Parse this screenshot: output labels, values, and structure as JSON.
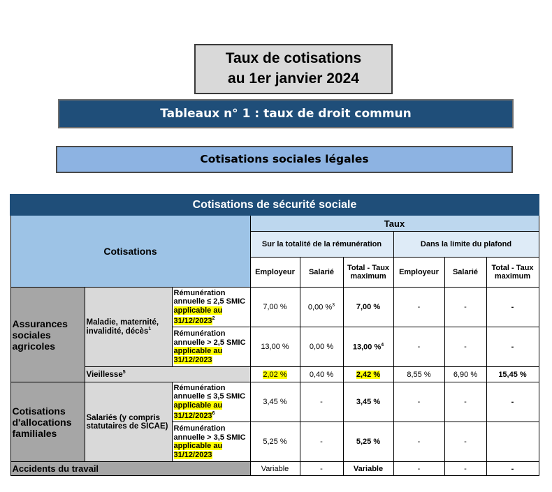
{
  "header": {
    "title_line1": "Taux de cotisations",
    "title_line2": "au 1er janvier 2024",
    "banner": "Tableaux n° 1 : taux de droit commun",
    "section": "Cotisations sociales légales"
  },
  "table": {
    "title": "Cotisations de sécurité sociale",
    "head": {
      "cotisations": "Cotisations",
      "taux": "Taux",
      "total_group": "Sur la totalité de la rémunération",
      "plafond_group": "Dans la limite du plafond",
      "columns": [
        "Employeur",
        "Salarié",
        "Total - Taux maximum",
        "Employeur",
        "Salarié",
        "Total - Taux maximum"
      ]
    },
    "rows": [
      {
        "group": "Assurances sociales agricoles",
        "subgroup": "Maladie, maternité, invalidité, décès",
        "subgroup_note": "1",
        "condition": "Rémunération annuelle ≤ 2,5 SMIC",
        "condition_highlight": "applicable au 31/12/2023",
        "condition_note": "2",
        "cells": [
          "7,00 %",
          {
            "text": "0,00 %",
            "note": "3"
          },
          "7,00 %",
          "-",
          "-",
          "-"
        ]
      },
      {
        "condition": "Rémunération annuelle > 2,5 SMIC",
        "condition_highlight": "applicable au 31/12/2023",
        "cells": [
          "13,00 %",
          "0,00 %",
          {
            "text": "13,00 %",
            "note": "4"
          },
          "-",
          "-",
          "-"
        ]
      },
      {
        "label": "Vieillesse",
        "label_note": "5",
        "cells": [
          "2,02 %",
          "0,40 %",
          "2,42 %",
          "8,55 %",
          "6,90 %",
          "15,45 %"
        ]
      },
      {
        "group": "Cotisations d'allocations familiales",
        "subgroup": "Salariés (y compris statutaires de SICAE)",
        "condition": "Rémunération annuelle ≤ 3,5 SMIC",
        "condition_highlight": "applicable au 31/12/2023",
        "condition_note": "6",
        "cells": [
          "3,45 %",
          "-",
          "3,45 %",
          "-",
          "-",
          "-"
        ]
      },
      {
        "condition": "Rémunération annuelle > 3,5 SMIC",
        "condition_highlight": "applicable au 31/12/2023",
        "cells": [
          "5,25 %",
          "-",
          "5,25 %",
          "-",
          "-",
          null
        ]
      },
      {
        "label": "Accidents du travail",
        "cells": [
          "Variable",
          "-",
          "Variable",
          "-",
          "-",
          "-"
        ]
      }
    ]
  }
}
